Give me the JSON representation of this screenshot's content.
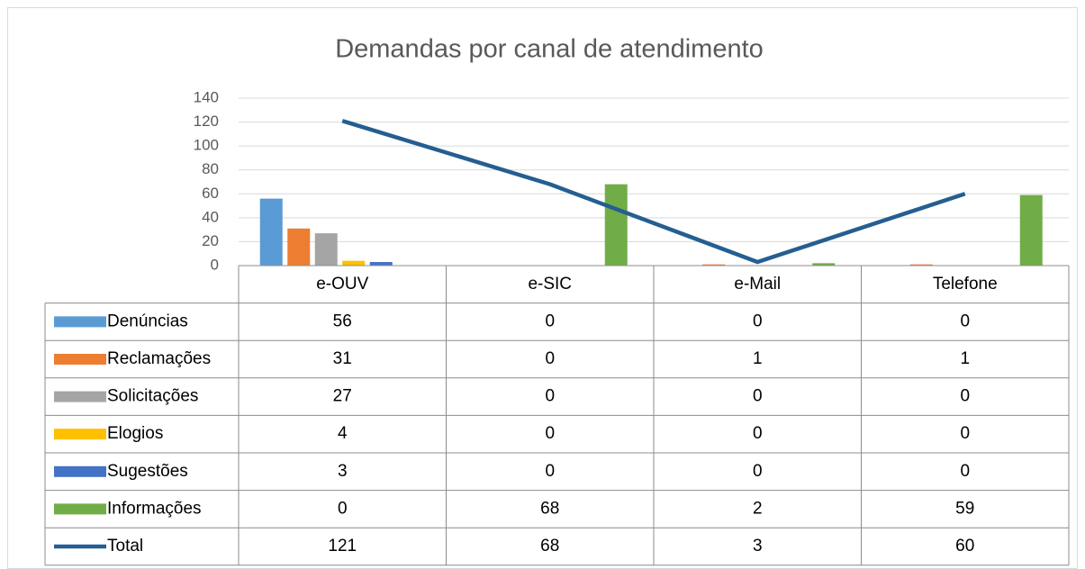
{
  "chart_data": {
    "type": "bar",
    "title": "Demandas por canal de atendimento",
    "categories": [
      "e-OUV",
      "e-SIC",
      "e-Mail",
      "Telefone"
    ],
    "series": [
      {
        "name": "Denúncias",
        "color": "#5b9bd5",
        "values": [
          56,
          0,
          0,
          0
        ]
      },
      {
        "name": "Reclamações",
        "color": "#ed7d31",
        "values": [
          31,
          0,
          1,
          1
        ]
      },
      {
        "name": "Solicitações",
        "color": "#a5a5a5",
        "values": [
          27,
          0,
          0,
          0
        ]
      },
      {
        "name": "Elogios",
        "color": "#ffc000",
        "values": [
          4,
          0,
          0,
          0
        ]
      },
      {
        "name": "Sugestões",
        "color": "#4472c4",
        "values": [
          3,
          0,
          0,
          0
        ]
      },
      {
        "name": "Informações",
        "color": "#70ad47",
        "values": [
          0,
          68,
          2,
          59
        ]
      },
      {
        "name": "Total",
        "color": "#255e91",
        "type": "line",
        "values": [
          121,
          68,
          3,
          60
        ]
      }
    ],
    "ylim": [
      0,
      140
    ],
    "yticks": [
      0,
      20,
      40,
      60,
      80,
      100,
      120,
      140
    ],
    "grid": true
  }
}
